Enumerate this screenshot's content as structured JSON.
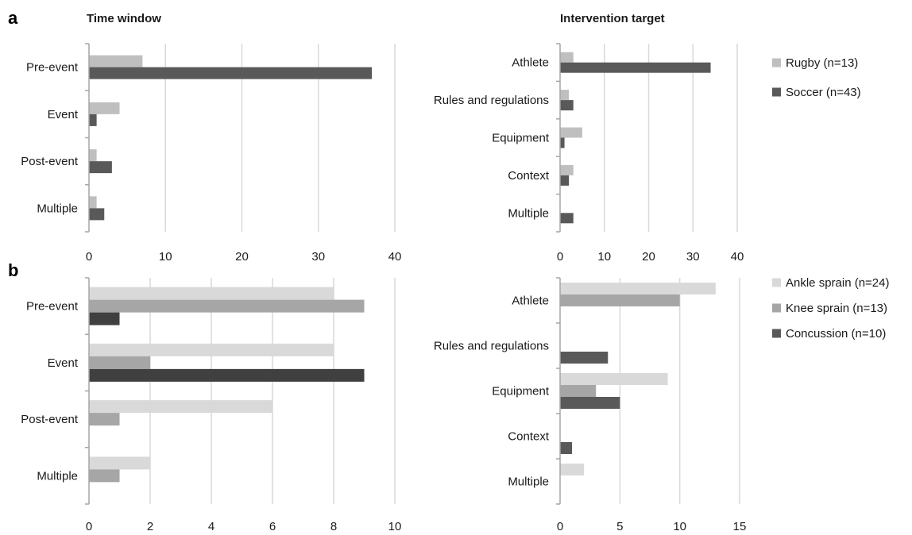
{
  "panel_labels": [
    "a",
    "b"
  ],
  "chart_data": [
    {
      "id": "a-time",
      "type": "bar",
      "orientation": "horizontal",
      "panel": "a",
      "title": "Time window",
      "categories": [
        "Pre-event",
        "Event",
        "Post-event",
        "Multiple"
      ],
      "series": [
        {
          "name": "Rugby (n=13)",
          "color": "#bfbfbf",
          "values": [
            7,
            4,
            1,
            1
          ]
        },
        {
          "name": "Soccer (n=43)",
          "color": "#595959",
          "values": [
            37,
            1,
            3,
            2
          ]
        }
      ],
      "xlim": [
        0,
        40
      ],
      "ticks": [
        0,
        10,
        20,
        30,
        40
      ],
      "grid": true,
      "legend": ""
    },
    {
      "id": "a-target",
      "type": "bar",
      "orientation": "horizontal",
      "panel": "a",
      "title": "Intervention target",
      "categories": [
        "Athlete",
        "Rules and regulations",
        "Equipment",
        "Context",
        "Multiple"
      ],
      "series": [
        {
          "name": "Rugby (n=13)",
          "color": "#bfbfbf",
          "values": [
            3,
            2,
            5,
            3,
            0
          ]
        },
        {
          "name": "Soccer (n=43)",
          "color": "#595959",
          "values": [
            34,
            3,
            1,
            2,
            3
          ]
        }
      ],
      "xlim": [
        0,
        40
      ],
      "ticks": [
        0,
        10,
        20,
        30,
        40
      ],
      "grid": true,
      "legend": "right"
    },
    {
      "id": "b-time",
      "type": "bar",
      "orientation": "horizontal",
      "panel": "b",
      "title": "",
      "categories": [
        "Pre-event",
        "Event",
        "Post-event",
        "Multiple"
      ],
      "series": [
        {
          "name": "Ankle sprain (n=24)",
          "color": "#d9d9d9",
          "values": [
            8,
            8,
            6,
            2
          ]
        },
        {
          "name": "Knee sprain (n=13)",
          "color": "#a6a6a6",
          "values": [
            9,
            2,
            1,
            1
          ]
        },
        {
          "name": "Concussion (n=10)",
          "color": "#404040",
          "values": [
            1,
            9,
            0,
            0
          ]
        }
      ],
      "xlim": [
        0,
        10
      ],
      "ticks": [
        0,
        2,
        4,
        6,
        8,
        10
      ],
      "grid": true,
      "legend": ""
    },
    {
      "id": "b-target",
      "type": "bar",
      "orientation": "horizontal",
      "panel": "b",
      "title": "",
      "categories": [
        "Athlete",
        "Rules and regulations",
        "Equipment",
        "Context",
        "Multiple"
      ],
      "series": [
        {
          "name": "Ankle sprain (n=24)",
          "color": "#d9d9d9",
          "values": [
            13,
            0,
            9,
            0,
            2
          ]
        },
        {
          "name": "Knee sprain (n=13)",
          "color": "#a6a6a6",
          "values": [
            10,
            0,
            3,
            0,
            0
          ]
        },
        {
          "name": "Concussion (n=10)",
          "color": "#595959",
          "values": [
            0,
            4,
            5,
            1,
            0
          ]
        }
      ],
      "xlim": [
        0,
        15
      ],
      "ticks": [
        0,
        5,
        10,
        15
      ],
      "grid": true,
      "legend": "right"
    }
  ]
}
